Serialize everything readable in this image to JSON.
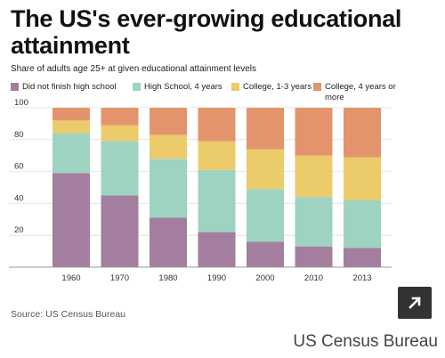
{
  "header": {
    "title": "The US's ever-growing educational attainment",
    "subtitle": "Share of adults age 25+ at given educational attainment levels"
  },
  "source": "Source: US Census Bureau",
  "credit": "US Census Bureau",
  "expand_icon": "expand-arrow-icon",
  "chart_data": {
    "type": "bar",
    "stacked": true,
    "title": "The US's ever-growing educational attainment",
    "subtitle": "Share of adults age 25+ at given educational attainment levels",
    "categories": [
      "1960",
      "1970",
      "1980",
      "1990",
      "2000",
      "2010",
      "2013"
    ],
    "ylim": [
      0,
      100
    ],
    "yticks": [
      20,
      40,
      60,
      80,
      100
    ],
    "grid": true,
    "legend": "top",
    "series": [
      {
        "name": "Did not finish high school",
        "color": "#a37e9e",
        "values": [
          59,
          45,
          31,
          22,
          16,
          13,
          12
        ]
      },
      {
        "name": "High School, 4 years",
        "color": "#9dd3c0",
        "values": [
          25,
          34,
          37,
          39,
          33,
          31,
          30
        ]
      },
      {
        "name": "College, 1-3 years",
        "color": "#eccb6b",
        "values": [
          8,
          10,
          15,
          18,
          25,
          26,
          27
        ]
      },
      {
        "name": "College, 4 years or more",
        "color": "#e3946c",
        "values": [
          8,
          11,
          17,
          21,
          26,
          30,
          31
        ]
      }
    ]
  }
}
